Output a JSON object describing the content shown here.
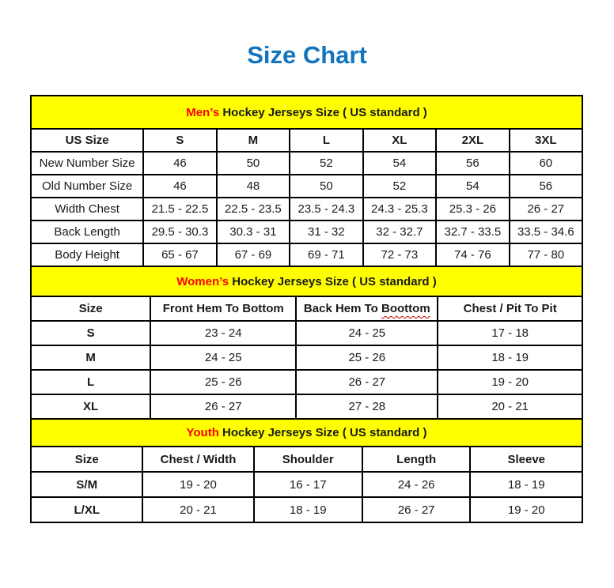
{
  "page": {
    "title": "Size Chart"
  },
  "colors": {
    "title_blue": "#1375bd",
    "band_yellow": "#ffff00",
    "accent_red": "#ff0000",
    "squiggle_red": "#c00000",
    "border": "#000000",
    "text": "#1a1a1a"
  },
  "tables": [
    {
      "id": "mens",
      "title_accent": "Men’s",
      "title_rest": " Hockey Jerseys Size ( US standard )",
      "columns": [
        "US Size",
        "S",
        "M",
        "L",
        "XL",
        "2XL",
        "3XL"
      ],
      "rows": [
        [
          "New Number Size",
          "46",
          "50",
          "52",
          "54",
          "56",
          "60"
        ],
        [
          "Old Number Size",
          "46",
          "48",
          "50",
          "52",
          "54",
          "56"
        ],
        [
          "Width Chest",
          "21.5 - 22.5",
          "22.5 - 23.5",
          "23.5 - 24.3",
          "24.3 - 25.3",
          "25.3 - 26",
          "26 - 27"
        ],
        [
          "Back Length",
          "29.5 - 30.3",
          "30.3 - 31",
          "31 - 32",
          "32 - 32.7",
          "32.7 - 33.5",
          "33.5 - 34.6"
        ],
        [
          "Body Height",
          "65 - 67",
          "67 - 69",
          "69 - 71",
          "72 - 73",
          "74 - 76",
          "77 - 80"
        ]
      ]
    },
    {
      "id": "womens",
      "title_accent": "Women’s",
      "title_rest": " Hockey Jerseys Size ( US standard )",
      "columns": [
        "Size",
        "Front Hem To Bottom",
        {
          "prefix": "Back Hem To ",
          "misspelled": "Boottom"
        },
        "Chest / Pit To Pit"
      ],
      "rows": [
        [
          "S",
          "23 - 24",
          "24 - 25",
          "17 - 18"
        ],
        [
          "M",
          "24 - 25",
          "25 - 26",
          "18 - 19"
        ],
        [
          "L",
          "25 - 26",
          "26 - 27",
          "19 - 20"
        ],
        [
          "XL",
          "26 - 27",
          "27 - 28",
          "20 - 21"
        ]
      ]
    },
    {
      "id": "youth",
      "title_accent": "Youth",
      "title_rest": " Hockey Jerseys Size ( US standard )",
      "columns": [
        "Size",
        "Chest / Width",
        "Shoulder",
        "Length",
        "Sleeve"
      ],
      "rows": [
        [
          "S/M",
          "19 - 20",
          "16 - 17",
          "24 - 26",
          "18 - 19"
        ],
        [
          "L/XL",
          "20 - 21",
          "18 - 19",
          "26 - 27",
          "19 - 20"
        ]
      ]
    }
  ]
}
